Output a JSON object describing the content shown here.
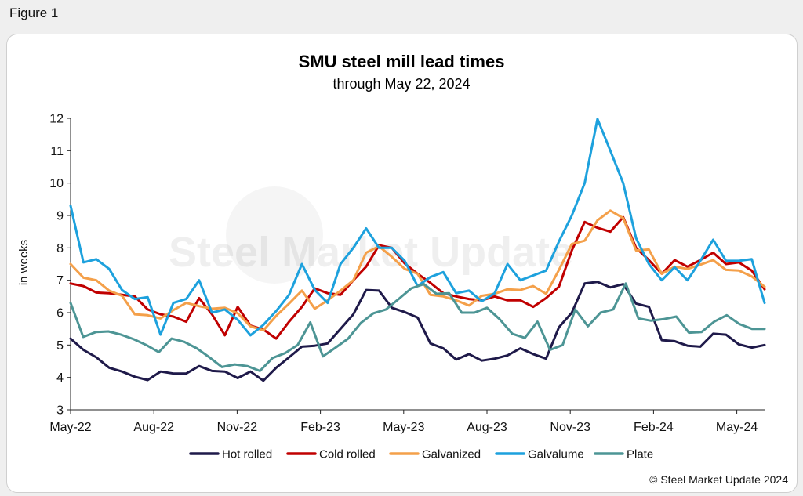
{
  "header": {
    "figure_label": "Figure 1"
  },
  "watermark": "Steel Market Update",
  "copyright": "© Steel Market Update 2024",
  "chart_data": {
    "type": "line",
    "title": "SMU steel mill lead times",
    "subtitle": "through May 22, 2024",
    "xlabel": "",
    "ylabel": "in weeks",
    "ylim": [
      3,
      12
    ],
    "yticks": [
      3,
      4,
      5,
      6,
      7,
      8,
      9,
      10,
      11,
      12
    ],
    "xlim": [
      0,
      50
    ],
    "xticks": [
      {
        "x": 0,
        "label": "May-22"
      },
      {
        "x": 6,
        "label": "Aug-22"
      },
      {
        "x": 12,
        "label": "Nov-22"
      },
      {
        "x": 18,
        "label": "Feb-23"
      },
      {
        "x": 24,
        "label": "May-23"
      },
      {
        "x": 30,
        "label": "Aug-23"
      },
      {
        "x": 36,
        "label": "Nov-23"
      },
      {
        "x": 42,
        "label": "Feb-24"
      },
      {
        "x": 48,
        "label": "May-24"
      }
    ],
    "grid": false,
    "legend_position": "bottom",
    "series": [
      {
        "name": "Hot rolled",
        "color": "#1f1a4a",
        "values": [
          5.2,
          4.85,
          4.62,
          4.3,
          4.18,
          4.02,
          3.92,
          4.18,
          4.12,
          4.12,
          4.35,
          4.2,
          4.18,
          3.98,
          4.18,
          3.9,
          4.3,
          4.62,
          4.95,
          4.98,
          5.05,
          5.5,
          5.95,
          6.7,
          6.68,
          6.15,
          6.02,
          5.85,
          5.05,
          4.9,
          4.55,
          4.72,
          4.52,
          4.58,
          4.68,
          4.9,
          4.72,
          4.58,
          5.55,
          6.0,
          6.9,
          6.95,
          6.78,
          6.88,
          6.28,
          6.18,
          5.15,
          5.12,
          4.98,
          4.95,
          5.35,
          5.32,
          5.02,
          4.92,
          5.0
        ],
        "x_step": 0.8929
      },
      {
        "name": "Cold rolled",
        "color": "#c00000",
        "values": [
          6.9,
          6.82,
          6.62,
          6.6,
          6.55,
          6.5,
          6.1,
          5.95,
          5.88,
          5.72,
          6.45,
          5.95,
          5.3,
          6.18,
          5.6,
          5.48,
          5.2,
          5.72,
          6.18,
          6.75,
          6.6,
          6.55,
          7.0,
          7.42,
          8.08,
          8.0,
          7.52,
          7.2,
          6.92,
          6.6,
          6.5,
          6.42,
          6.38,
          6.5,
          6.38,
          6.38,
          6.18,
          6.45,
          6.8,
          7.92,
          8.8,
          8.62,
          8.5,
          8.95,
          8.0,
          7.62,
          7.2,
          7.62,
          7.42,
          7.62,
          7.85,
          7.5,
          7.55,
          7.3,
          6.72
        ],
        "x_step": 0.8929
      },
      {
        "name": "Galvanized",
        "color": "#f4a04a",
        "values": [
          7.5,
          7.08,
          7.0,
          6.68,
          6.52,
          5.95,
          5.92,
          5.82,
          6.08,
          6.3,
          6.2,
          6.12,
          6.15,
          5.98,
          5.58,
          5.45,
          5.9,
          6.28,
          6.68,
          6.12,
          6.38,
          6.68,
          7.0,
          7.85,
          8.05,
          7.72,
          7.35,
          7.2,
          6.55,
          6.5,
          6.38,
          6.22,
          6.52,
          6.58,
          6.72,
          6.7,
          6.82,
          6.58,
          7.32,
          8.12,
          8.22,
          8.85,
          9.15,
          8.92,
          7.92,
          7.95,
          7.2,
          7.42,
          7.35,
          7.48,
          7.62,
          7.32,
          7.3,
          7.12,
          6.8
        ],
        "x_step": 0.8929
      },
      {
        "name": "Galvalume",
        "color": "#1da1dd",
        "values": [
          9.3,
          7.55,
          7.65,
          7.35,
          6.7,
          6.42,
          6.48,
          5.32,
          6.3,
          6.42,
          7.0,
          6.0,
          6.1,
          5.78,
          5.3,
          5.62,
          6.05,
          6.55,
          7.5,
          6.7,
          6.3,
          7.5,
          8.0,
          8.6,
          8.0,
          8.0,
          7.6,
          6.82,
          7.1,
          7.25,
          6.6,
          6.68,
          6.35,
          6.6,
          7.5,
          7.0,
          7.15,
          7.3,
          8.2,
          9.0,
          10.0,
          11.98,
          11.0,
          10.0,
          8.3,
          7.5,
          7.0,
          7.4,
          7.0,
          7.6,
          8.25,
          7.6,
          7.6,
          7.65,
          6.3
        ],
        "x_step": 0.8929
      },
      {
        "name": "Plate",
        "color": "#4d9595",
        "values": [
          6.3,
          5.25,
          5.4,
          5.42,
          5.32,
          5.18,
          5.0,
          4.78,
          5.2,
          5.1,
          4.9,
          4.62,
          4.32,
          4.4,
          4.35,
          4.2,
          4.6,
          4.75,
          5.0,
          5.7,
          4.65,
          4.92,
          5.2,
          5.68,
          5.98,
          6.1,
          6.42,
          6.75,
          6.88,
          6.58,
          6.6,
          6.0,
          6.0,
          6.15,
          5.8,
          5.35,
          5.22,
          5.72,
          4.85,
          5.0,
          6.1,
          5.58,
          6.0,
          6.1,
          6.9,
          5.82,
          5.75,
          5.8,
          5.88,
          5.38,
          5.4,
          5.72,
          5.92,
          5.65,
          5.5,
          5.5
        ],
        "x_step": 0.8929
      }
    ]
  }
}
